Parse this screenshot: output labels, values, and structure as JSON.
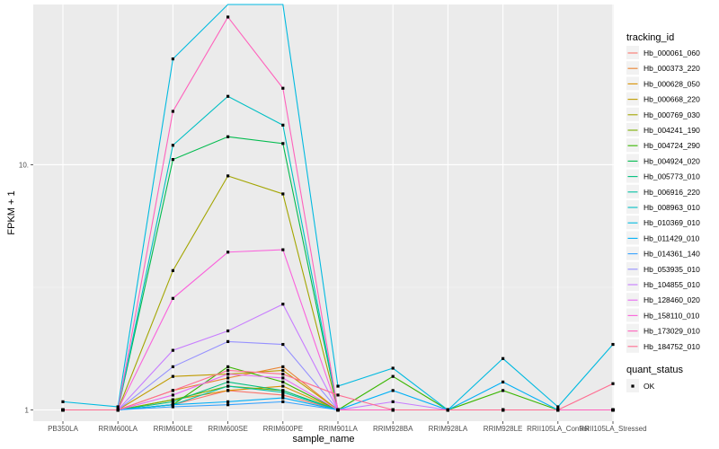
{
  "chart_data": {
    "type": "line",
    "xlabel": "sample_name",
    "ylabel": "FPKM + 1",
    "y_scale": "log10",
    "ylim": [
      0.9,
      45
    ],
    "y_ticks": [
      1,
      10
    ],
    "grid": true,
    "legend_position": "right",
    "categories": [
      "PB350LA",
      "RRIM600LA",
      "RRIM600LE",
      "RRIM600SE",
      "RRIM600PE",
      "RRIM901LA",
      "RRIM928BA",
      "RRIM928LA",
      "RRIM928LE",
      "RRII105LA_Control",
      "RRII105LA_Stressed"
    ],
    "legend_title": "tracking_id",
    "series": [
      {
        "name": "Hb_000061_060",
        "color": "#F8766D",
        "values": [
          1.0,
          1.0,
          1.05,
          1.2,
          1.15,
          1.0,
          1.0,
          1.0,
          1.0,
          1.0,
          1.0
        ]
      },
      {
        "name": "Hb_000373_220",
        "color": "#EA8331",
        "values": [
          1.0,
          1.0,
          1.2,
          1.35,
          1.5,
          1.0,
          1.0,
          1.0,
          1.0,
          1.0,
          1.0
        ]
      },
      {
        "name": "Hb_000628_050",
        "color": "#D89000",
        "values": [
          1.0,
          1.0,
          1.1,
          1.2,
          1.25,
          1.0,
          1.0,
          1.0,
          1.0,
          1.0,
          1.0
        ]
      },
      {
        "name": "Hb_000668_220",
        "color": "#C09B00",
        "values": [
          1.0,
          1.0,
          1.37,
          1.4,
          1.45,
          1.0,
          1.0,
          1.0,
          1.0,
          1.0,
          1.0
        ]
      },
      {
        "name": "Hb_000769_030",
        "color": "#A3A500",
        "values": [
          1.0,
          1.0,
          3.7,
          9.0,
          7.6,
          1.0,
          1.0,
          1.0,
          1.0,
          1.0,
          1.0
        ]
      },
      {
        "name": "Hb_004241_190",
        "color": "#7CAE00",
        "values": [
          1.0,
          1.0,
          1.1,
          1.25,
          1.2,
          1.0,
          1.0,
          1.0,
          1.0,
          1.0,
          1.0
        ]
      },
      {
        "name": "Hb_004724_290",
        "color": "#39B600",
        "values": [
          1.0,
          1.0,
          1.05,
          1.5,
          1.3,
          1.0,
          1.37,
          1.0,
          1.2,
          1.0,
          1.0
        ]
      },
      {
        "name": "Hb_004924_020",
        "color": "#00BB4E",
        "values": [
          1.0,
          1.0,
          10.5,
          13.0,
          12.2,
          1.0,
          1.0,
          1.0,
          1.0,
          1.0,
          1.0
        ]
      },
      {
        "name": "Hb_005773_010",
        "color": "#00BF7D",
        "values": [
          1.0,
          1.0,
          1.08,
          1.3,
          1.2,
          1.0,
          1.0,
          1.0,
          1.0,
          1.0,
          1.0
        ]
      },
      {
        "name": "Hb_006916_220",
        "color": "#00C1A3",
        "values": [
          1.0,
          1.0,
          1.05,
          1.25,
          1.18,
          1.0,
          1.0,
          1.0,
          1.0,
          1.0,
          1.0
        ]
      },
      {
        "name": "Hb_008963_010",
        "color": "#00BFC4",
        "values": [
          1.0,
          1.0,
          12.0,
          19.0,
          14.5,
          1.0,
          1.0,
          1.0,
          1.0,
          1.0,
          1.0
        ]
      },
      {
        "name": "Hb_010369_010",
        "color": "#00BAE0",
        "values": [
          1.08,
          1.03,
          27.0,
          70.0,
          62.0,
          1.25,
          1.48,
          1.0,
          1.62,
          1.03,
          1.85
        ]
      },
      {
        "name": "Hb_011429_010",
        "color": "#00B0F6",
        "values": [
          1.0,
          1.0,
          1.05,
          1.08,
          1.12,
          1.0,
          1.2,
          1.0,
          1.3,
          1.0,
          1.0
        ]
      },
      {
        "name": "Hb_014361_140",
        "color": "#35A2FF",
        "values": [
          1.0,
          1.0,
          1.03,
          1.05,
          1.08,
          1.0,
          1.0,
          1.0,
          1.0,
          1.0,
          1.0
        ]
      },
      {
        "name": "Hb_053935_010",
        "color": "#9590FF",
        "values": [
          1.0,
          1.0,
          1.5,
          1.9,
          1.85,
          1.0,
          1.0,
          1.0,
          1.0,
          1.0,
          1.0
        ]
      },
      {
        "name": "Hb_104855_010",
        "color": "#C77CFF",
        "values": [
          1.0,
          1.0,
          1.75,
          2.1,
          2.7,
          1.0,
          1.08,
          1.0,
          1.0,
          1.0,
          1.0
        ]
      },
      {
        "name": "Hb_128460_020",
        "color": "#E76BF3",
        "values": [
          1.0,
          1.0,
          1.15,
          1.4,
          1.35,
          1.0,
          1.0,
          1.0,
          1.0,
          1.0,
          1.0
        ]
      },
      {
        "name": "Hb_158110_010",
        "color": "#FA62DB",
        "values": [
          1.0,
          1.0,
          2.85,
          4.4,
          4.5,
          1.0,
          1.0,
          1.0,
          1.0,
          1.0,
          1.0
        ]
      },
      {
        "name": "Hb_173029_010",
        "color": "#FF62BC",
        "values": [
          1.0,
          1.0,
          16.5,
          40.0,
          20.5,
          1.0,
          1.0,
          1.0,
          1.0,
          1.0,
          1.0
        ]
      },
      {
        "name": "Hb_184752_010",
        "color": "#FF6C91",
        "values": [
          1.0,
          1.0,
          1.2,
          1.45,
          1.4,
          1.15,
          1.0,
          1.0,
          1.0,
          1.0,
          1.28
        ]
      }
    ],
    "second_legend": {
      "title": "quant_status",
      "entries": [
        "OK"
      ]
    }
  }
}
